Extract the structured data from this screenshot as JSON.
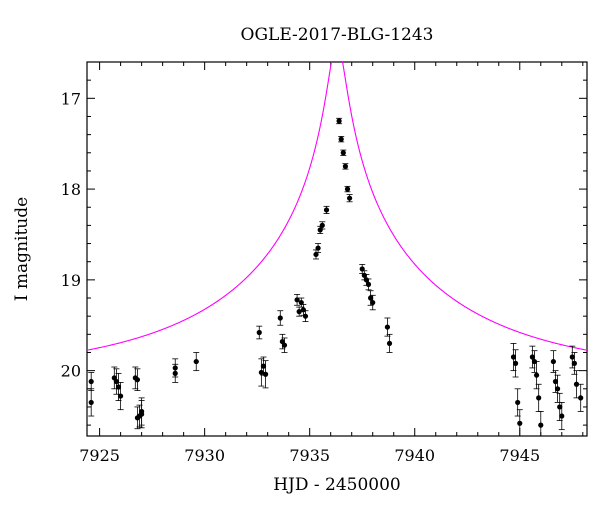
{
  "chart_data": {
    "type": "scatter",
    "title": "OGLE-2017-BLG-1243",
    "xlabel": "HJD - 2450000",
    "ylabel": "I magnitude",
    "xlim": [
      7924.4,
      7948.2
    ],
    "ylim": [
      20.72,
      16.6
    ],
    "y_inverted": true,
    "x_ticks": [
      7925,
      7930,
      7935,
      7940,
      7945
    ],
    "y_ticks": [
      17,
      18,
      19,
      20
    ],
    "grid": false,
    "model_color": "#ff00ff",
    "point_color": "#000000",
    "model": {
      "type": "point-lens",
      "baseline_mag": 20.05,
      "t0": 7936.3,
      "u0": 0.034,
      "tE": 11.0
    },
    "series": [
      {
        "x": [
          7924.6,
          7924.6,
          7925.7,
          7925.8,
          7925.9,
          7926.0,
          7926.7,
          7926.8,
          7926.8,
          7926.9,
          7927.0,
          7927.0,
          7928.6,
          7928.6,
          7929.6,
          7932.6,
          7932.7,
          7932.8,
          7932.9,
          7933.6,
          7933.7,
          7933.8,
          7934.4,
          7934.5,
          7934.6,
          7934.7,
          7934.8,
          7935.3,
          7935.4,
          7935.5,
          7935.6,
          7935.8,
          7936.4,
          7936.5,
          7936.6,
          7936.7,
          7936.8,
          7936.9,
          7937.5,
          7937.6,
          7937.7,
          7937.8,
          7937.9,
          7938.0,
          7938.7,
          7938.8,
          7944.7,
          7944.8,
          7944.9,
          7945.0,
          7945.6,
          7945.7,
          7945.8,
          7945.9,
          7946.0,
          7946.6,
          7946.7,
          7946.8,
          7946.9,
          7947.0,
          7947.5,
          7947.6,
          7947.7,
          7947.9
        ],
        "y": [
          20.35,
          20.12,
          20.08,
          20.12,
          20.18,
          20.28,
          20.08,
          20.1,
          20.52,
          20.5,
          20.48,
          20.45,
          19.97,
          20.03,
          19.9,
          19.58,
          20.02,
          19.95,
          20.04,
          19.42,
          19.68,
          19.72,
          19.22,
          19.35,
          19.25,
          19.33,
          19.4,
          18.72,
          18.65,
          18.45,
          18.4,
          18.23,
          17.25,
          17.45,
          17.6,
          17.75,
          18.0,
          18.1,
          18.88,
          18.95,
          19.0,
          19.05,
          19.2,
          19.25,
          19.52,
          19.7,
          19.85,
          19.92,
          20.35,
          20.58,
          19.85,
          19.9,
          20.05,
          20.3,
          20.6,
          19.9,
          20.12,
          20.2,
          20.4,
          20.5,
          19.85,
          19.92,
          20.15,
          20.3
        ],
        "err": [
          0.15,
          0.1,
          0.12,
          0.14,
          0.15,
          0.15,
          0.12,
          0.12,
          0.12,
          0.12,
          0.15,
          0.15,
          0.1,
          0.1,
          0.1,
          0.07,
          0.15,
          0.1,
          0.15,
          0.08,
          0.08,
          0.08,
          0.06,
          0.05,
          0.05,
          0.06,
          0.06,
          0.05,
          0.05,
          0.04,
          0.04,
          0.04,
          0.03,
          0.03,
          0.03,
          0.03,
          0.03,
          0.04,
          0.05,
          0.05,
          0.06,
          0.06,
          0.08,
          0.08,
          0.1,
          0.1,
          0.15,
          0.15,
          0.15,
          0.15,
          0.12,
          0.12,
          0.15,
          0.15,
          0.15,
          0.12,
          0.12,
          0.15,
          0.15,
          0.15,
          0.12,
          0.12,
          0.15,
          0.15
        ]
      }
    ]
  }
}
